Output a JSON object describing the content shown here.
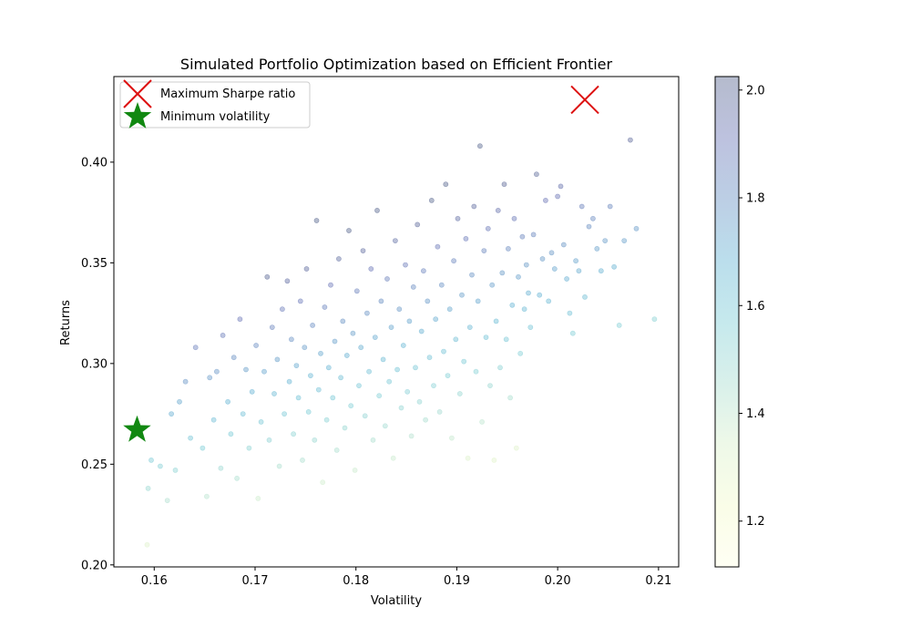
{
  "chart_data": {
    "type": "scatter",
    "title": "Simulated Portfolio Optimization based on Efficient Frontier",
    "xlabel": "Volatility",
    "ylabel": "Returns",
    "xlim": [
      0.156,
      0.212
    ],
    "ylim": [
      0.199,
      0.4425
    ],
    "xticks": [
      "0.16",
      "0.17",
      "0.18",
      "0.19",
      "0.20",
      "0.21"
    ],
    "yticks": [
      "0.20",
      "0.25",
      "0.30",
      "0.35",
      "0.40"
    ],
    "grid": false,
    "legend_position": "top-left",
    "legend": [
      {
        "label": "Maximum Sharpe ratio",
        "marker": "x",
        "color": "#dd1111"
      },
      {
        "label": "Minimum volatility",
        "marker": "star",
        "color": "#118811"
      }
    ],
    "colorbar": {
      "range": [
        1.115,
        2.025
      ],
      "ticks": [
        "1.2",
        "1.4",
        "1.6",
        "1.8",
        "2.0"
      ],
      "colormap": "YlGnBu",
      "alpha": 0.3
    },
    "highlighted": {
      "max_sharpe": {
        "x": 0.2027,
        "y": 0.431
      },
      "min_volatility": {
        "x": 0.1583,
        "y": 0.267
      }
    },
    "scatter_points": [
      [
        0.1593,
        0.21
      ],
      [
        0.1594,
        0.238
      ],
      [
        0.1597,
        0.252
      ],
      [
        0.1606,
        0.249
      ],
      [
        0.1613,
        0.232
      ],
      [
        0.1617,
        0.275
      ],
      [
        0.1621,
        0.247
      ],
      [
        0.1625,
        0.281
      ],
      [
        0.1631,
        0.291
      ],
      [
        0.1636,
        0.263
      ],
      [
        0.1641,
        0.308
      ],
      [
        0.1648,
        0.258
      ],
      [
        0.1652,
        0.234
      ],
      [
        0.1655,
        0.293
      ],
      [
        0.1659,
        0.272
      ],
      [
        0.1662,
        0.296
      ],
      [
        0.1666,
        0.248
      ],
      [
        0.1668,
        0.314
      ],
      [
        0.1673,
        0.281
      ],
      [
        0.1676,
        0.265
      ],
      [
        0.1679,
        0.303
      ],
      [
        0.1682,
        0.243
      ],
      [
        0.1685,
        0.322
      ],
      [
        0.1688,
        0.275
      ],
      [
        0.1691,
        0.297
      ],
      [
        0.1694,
        0.258
      ],
      [
        0.1697,
        0.286
      ],
      [
        0.1701,
        0.309
      ],
      [
        0.1703,
        0.233
      ],
      [
        0.1706,
        0.271
      ],
      [
        0.1709,
        0.296
      ],
      [
        0.1712,
        0.343
      ],
      [
        0.1714,
        0.262
      ],
      [
        0.1717,
        0.318
      ],
      [
        0.1719,
        0.285
      ],
      [
        0.1722,
        0.302
      ],
      [
        0.1724,
        0.249
      ],
      [
        0.1727,
        0.327
      ],
      [
        0.1729,
        0.275
      ],
      [
        0.1732,
        0.341
      ],
      [
        0.1734,
        0.291
      ],
      [
        0.1736,
        0.312
      ],
      [
        0.1738,
        0.265
      ],
      [
        0.1741,
        0.299
      ],
      [
        0.1743,
        0.283
      ],
      [
        0.1745,
        0.331
      ],
      [
        0.1747,
        0.252
      ],
      [
        0.1749,
        0.308
      ],
      [
        0.1751,
        0.347
      ],
      [
        0.1753,
        0.276
      ],
      [
        0.1755,
        0.294
      ],
      [
        0.1757,
        0.319
      ],
      [
        0.1759,
        0.262
      ],
      [
        0.1761,
        0.371
      ],
      [
        0.1763,
        0.287
      ],
      [
        0.1765,
        0.305
      ],
      [
        0.1767,
        0.241
      ],
      [
        0.1769,
        0.328
      ],
      [
        0.1771,
        0.272
      ],
      [
        0.1773,
        0.298
      ],
      [
        0.1775,
        0.339
      ],
      [
        0.1777,
        0.283
      ],
      [
        0.1779,
        0.311
      ],
      [
        0.1781,
        0.257
      ],
      [
        0.1783,
        0.352
      ],
      [
        0.1785,
        0.293
      ],
      [
        0.1787,
        0.321
      ],
      [
        0.1789,
        0.268
      ],
      [
        0.1791,
        0.304
      ],
      [
        0.1793,
        0.366
      ],
      [
        0.1795,
        0.279
      ],
      [
        0.1797,
        0.315
      ],
      [
        0.1799,
        0.247
      ],
      [
        0.1801,
        0.336
      ],
      [
        0.1803,
        0.289
      ],
      [
        0.1805,
        0.308
      ],
      [
        0.1807,
        0.356
      ],
      [
        0.1809,
        0.274
      ],
      [
        0.1811,
        0.325
      ],
      [
        0.1813,
        0.296
      ],
      [
        0.1815,
        0.347
      ],
      [
        0.1817,
        0.262
      ],
      [
        0.1819,
        0.313
      ],
      [
        0.1821,
        0.376
      ],
      [
        0.1823,
        0.284
      ],
      [
        0.1825,
        0.331
      ],
      [
        0.1827,
        0.302
      ],
      [
        0.1829,
        0.269
      ],
      [
        0.1831,
        0.342
      ],
      [
        0.1833,
        0.291
      ],
      [
        0.1835,
        0.318
      ],
      [
        0.1837,
        0.253
      ],
      [
        0.1839,
        0.361
      ],
      [
        0.1841,
        0.297
      ],
      [
        0.1843,
        0.327
      ],
      [
        0.1845,
        0.278
      ],
      [
        0.1847,
        0.309
      ],
      [
        0.1849,
        0.349
      ],
      [
        0.1851,
        0.286
      ],
      [
        0.1853,
        0.321
      ],
      [
        0.1855,
        0.264
      ],
      [
        0.1857,
        0.338
      ],
      [
        0.1859,
        0.298
      ],
      [
        0.1861,
        0.369
      ],
      [
        0.1863,
        0.281
      ],
      [
        0.1865,
        0.316
      ],
      [
        0.1867,
        0.346
      ],
      [
        0.1869,
        0.272
      ],
      [
        0.1871,
        0.331
      ],
      [
        0.1873,
        0.303
      ],
      [
        0.1875,
        0.381
      ],
      [
        0.1877,
        0.289
      ],
      [
        0.1879,
        0.322
      ],
      [
        0.1881,
        0.358
      ],
      [
        0.1883,
        0.276
      ],
      [
        0.1885,
        0.339
      ],
      [
        0.1887,
        0.306
      ],
      [
        0.1889,
        0.389
      ],
      [
        0.1891,
        0.294
      ],
      [
        0.1893,
        0.327
      ],
      [
        0.1895,
        0.263
      ],
      [
        0.1897,
        0.351
      ],
      [
        0.1899,
        0.312
      ],
      [
        0.1901,
        0.372
      ],
      [
        0.1903,
        0.285
      ],
      [
        0.1905,
        0.334
      ],
      [
        0.1907,
        0.301
      ],
      [
        0.1909,
        0.362
      ],
      [
        0.1911,
        0.253
      ],
      [
        0.1913,
        0.318
      ],
      [
        0.1915,
        0.344
      ],
      [
        0.1917,
        0.378
      ],
      [
        0.1919,
        0.296
      ],
      [
        0.1921,
        0.331
      ],
      [
        0.1923,
        0.408
      ],
      [
        0.1925,
        0.271
      ],
      [
        0.1927,
        0.356
      ],
      [
        0.1929,
        0.313
      ],
      [
        0.1931,
        0.367
      ],
      [
        0.1933,
        0.289
      ],
      [
        0.1935,
        0.339
      ],
      [
        0.1937,
        0.252
      ],
      [
        0.1939,
        0.321
      ],
      [
        0.1941,
        0.376
      ],
      [
        0.1943,
        0.298
      ],
      [
        0.1945,
        0.345
      ],
      [
        0.1947,
        0.389
      ],
      [
        0.1949,
        0.312
      ],
      [
        0.1951,
        0.357
      ],
      [
        0.1953,
        0.283
      ],
      [
        0.1955,
        0.329
      ],
      [
        0.1957,
        0.372
      ],
      [
        0.1959,
        0.258
      ],
      [
        0.1961,
        0.343
      ],
      [
        0.1963,
        0.305
      ],
      [
        0.1965,
        0.363
      ],
      [
        0.1967,
        0.327
      ],
      [
        0.1969,
        0.349
      ],
      [
        0.1971,
        0.335
      ],
      [
        0.1973,
        0.318
      ],
      [
        0.1976,
        0.364
      ],
      [
        0.1979,
        0.394
      ],
      [
        0.1982,
        0.334
      ],
      [
        0.1985,
        0.352
      ],
      [
        0.1988,
        0.381
      ],
      [
        0.1991,
        0.331
      ],
      [
        0.1994,
        0.355
      ],
      [
        0.1997,
        0.347
      ],
      [
        0.2,
        0.383
      ],
      [
        0.2003,
        0.388
      ],
      [
        0.2006,
        0.359
      ],
      [
        0.2009,
        0.342
      ],
      [
        0.2012,
        0.325
      ],
      [
        0.2015,
        0.315
      ],
      [
        0.2018,
        0.351
      ],
      [
        0.2021,
        0.346
      ],
      [
        0.2024,
        0.378
      ],
      [
        0.2027,
        0.333
      ],
      [
        0.2031,
        0.368
      ],
      [
        0.2035,
        0.372
      ],
      [
        0.2039,
        0.357
      ],
      [
        0.2043,
        0.346
      ],
      [
        0.2047,
        0.361
      ],
      [
        0.2052,
        0.378
      ],
      [
        0.2056,
        0.348
      ],
      [
        0.2061,
        0.319
      ],
      [
        0.2066,
        0.361
      ],
      [
        0.2072,
        0.411
      ],
      [
        0.2078,
        0.367
      ],
      [
        0.2096,
        0.322
      ]
    ]
  }
}
